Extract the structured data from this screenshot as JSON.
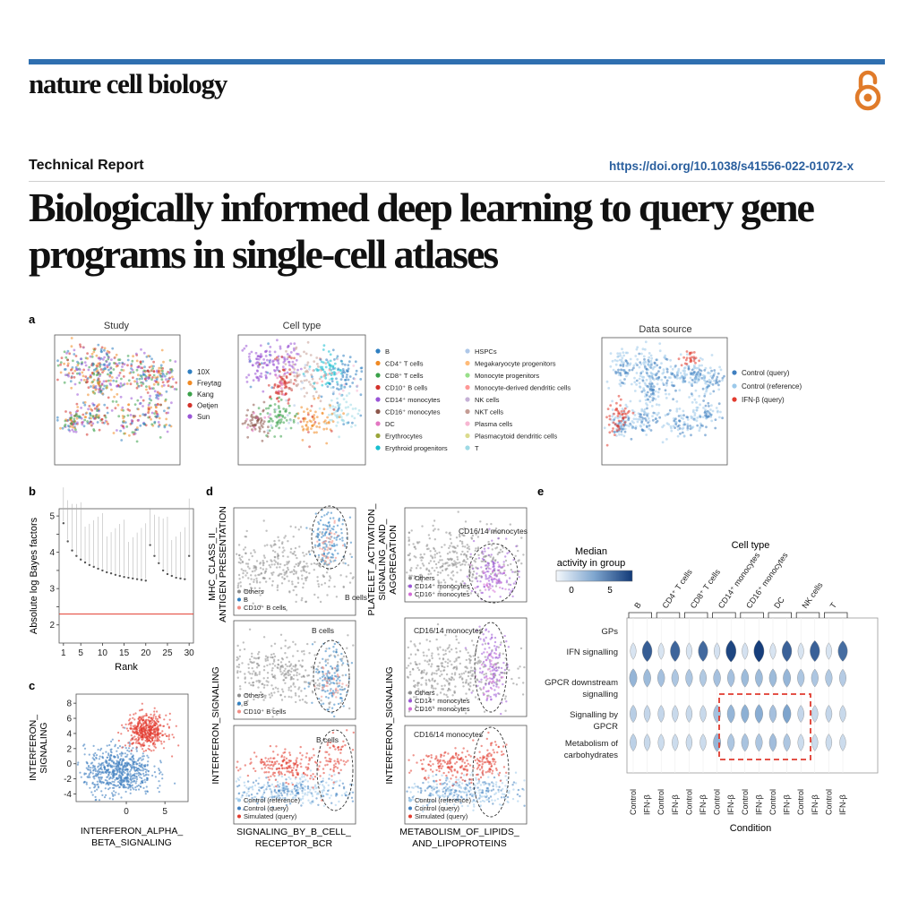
{
  "header": {
    "journal_name": "nature cell biology",
    "open_access_icon": "open-access-lock-icon",
    "article_type": "Technical Report",
    "doi": "https://doi.org/10.1038/s41556-022-01072-x",
    "title": "Biologically informed deep learning to query gene programs in single-cell atlases"
  },
  "colors": {
    "accent_bar": "#2f6fb0",
    "doi_link": "#2a5f9e",
    "open_access": "#e07b2a",
    "ifn_red": "#e23b2e",
    "control_blue": "#3f7fc0",
    "reference_lightblue": "#9cc9ea"
  },
  "figure": {
    "panel_letters": [
      "a",
      "b",
      "c",
      "d",
      "e"
    ],
    "a": {
      "study_title": "Study",
      "study_legend": [
        {
          "label": "10X",
          "color": "#2f7fc1"
        },
        {
          "label": "Freytag",
          "color": "#f08a24"
        },
        {
          "label": "Kang",
          "color": "#3aa14a"
        },
        {
          "label": "Oetjen",
          "color": "#d3322b"
        },
        {
          "label": "Sun",
          "color": "#9a55d6"
        }
      ],
      "celltype_title": "Cell type",
      "celltype_legend_col1": [
        {
          "label": "B",
          "color": "#2f7fc1"
        },
        {
          "label": "CD4⁺ T cells",
          "color": "#f08a24"
        },
        {
          "label": "CD8⁺ T cells",
          "color": "#3aa14a"
        },
        {
          "label": "CD10⁺ B cells",
          "color": "#d3322b"
        },
        {
          "label": "CD14⁺ monocytes",
          "color": "#9a55d6"
        },
        {
          "label": "CD16⁺ monocytes",
          "color": "#8c564b"
        },
        {
          "label": "DC",
          "color": "#e377c2"
        },
        {
          "label": "Erythrocytes",
          "color": "#9aa53a"
        },
        {
          "label": "Erythroid progenitors",
          "color": "#17becf"
        }
      ],
      "celltype_legend_col2": [
        {
          "label": "HSPCs",
          "color": "#aec7e8"
        },
        {
          "label": "Megakaryocyte progenitors",
          "color": "#ffbb78"
        },
        {
          "label": "Monocyte progenitors",
          "color": "#98df8a"
        },
        {
          "label": "Monocyte-derived dendritic cells",
          "color": "#ff9896"
        },
        {
          "label": "NK cells",
          "color": "#c5b0d5"
        },
        {
          "label": "NKT cells",
          "color": "#c49c94"
        },
        {
          "label": "Plasma cells",
          "color": "#f7b6d2"
        },
        {
          "label": "Plasmacytoid dendritic cells",
          "color": "#dbdb8d"
        },
        {
          "label": "T",
          "color": "#9edae5"
        }
      ],
      "source_title": "Data source",
      "source_legend": [
        {
          "label": "Control (query)",
          "color": "#3f7fc0"
        },
        {
          "label": "Control (reference)",
          "color": "#9cc9ea"
        },
        {
          "label": "IFN-β (query)",
          "color": "#e23b2e"
        }
      ]
    },
    "b": {
      "ylabel": "Absolute log Bayes factors",
      "xlabel": "Rank"
    },
    "c": {
      "ylabel_line1": "INTERFERON_",
      "ylabel_line2": "SIGNALING",
      "xlabel_line1": "INTERFERON_ALPHA_",
      "xlabel_line2": "BETA_SIGNALING"
    },
    "d": {
      "left_ylabels": [
        "MHC_CLASS_II_",
        "ANTIGEN PRESENTATION"
      ],
      "right_ylabels": [
        "PLATELET_ACTIVATION_",
        "SIGNALING_AND_",
        "AGGREGATION"
      ],
      "shared_ylabel": "INTERFERON_SIGNALING",
      "left_xlabels": [
        "SIGNALING_BY_B_CELL_",
        "RECEPTOR_BCR"
      ],
      "right_xlabels": [
        "METABOLISM_OF_LIPIDS_",
        "AND_LIPOPROTEINS"
      ],
      "annot_bcells": "B cells",
      "annot_mono": "CD16/14 monocytes",
      "legend_bcell": [
        "Others",
        "B",
        "CD10⁺ B cells"
      ],
      "legend_mono": [
        "Others",
        "CD14⁺ monocytes",
        "CD16⁺ monocytes"
      ],
      "legend_sim_left": [
        "Control (reference)",
        "Control (query)",
        "Simulated (query)"
      ],
      "legend_sim_right": [
        "Control (reference)",
        "Control (query)",
        "Simulated (query)"
      ]
    },
    "e": {
      "colorbar_title_line1": "Median",
      "colorbar_title_line2": "activity in group",
      "colorbar_ticks": [
        "0",
        "5"
      ],
      "celltype_title": "Cell type",
      "celltypes": [
        "B",
        "CD4⁺ T cells",
        "CD8⁺ T cells",
        "CD14⁺ monocytes",
        "CD16⁺ monocytes",
        "DC",
        "NK cells",
        "T"
      ],
      "rows": [
        "GPs",
        "IFN signalling",
        "GPCR downstream",
        "signalling",
        "Signalling by",
        "GPCR",
        "Metabolism of",
        "carbohydrates"
      ],
      "conditions": [
        "Control",
        "IFN-β"
      ],
      "xlabel": "Condition"
    }
  },
  "chart_data": [
    {
      "type": "scatter",
      "title": "",
      "xlabel": "Rank",
      "ylabel": "Absolute log Bayes factors",
      "x_ticks": [
        1,
        5,
        10,
        15,
        20,
        25,
        30
      ],
      "y_ticks": [
        2,
        2.5,
        3,
        3.5,
        4,
        4.5,
        5
      ],
      "xlim": [
        0,
        31
      ],
      "ylim": [
        1.5,
        5.2
      ],
      "threshold": 2.3,
      "x": [
        1,
        2,
        3,
        4,
        5,
        6,
        7,
        8,
        9,
        10,
        11,
        12,
        13,
        14,
        15,
        16,
        17,
        18,
        19,
        20,
        21,
        22,
        23,
        24,
        25,
        26,
        27,
        28,
        29,
        30
      ],
      "values": [
        4.8,
        4.3,
        4.05,
        3.9,
        3.8,
        3.72,
        3.65,
        3.6,
        3.55,
        3.5,
        3.45,
        3.42,
        3.38,
        3.35,
        3.32,
        3.3,
        3.28,
        3.26,
        3.24,
        3.22,
        4.2,
        3.9,
        3.7,
        3.5,
        3.4,
        3.35,
        3.3,
        3.28,
        3.26,
        3.9
      ]
    },
    {
      "type": "scatter",
      "xlabel": "INTERFERON_ALPHA_BETA_SIGNALING",
      "ylabel": "INTERFERON_SIGNALING",
      "x_ticks": [
        0,
        5
      ],
      "y_ticks": [
        -4,
        -2,
        0,
        2,
        4,
        6,
        8
      ],
      "xlim": [
        -6.5,
        8
      ],
      "ylim": [
        -5,
        9.2
      ],
      "series": [
        {
          "name": "Control",
          "color": "#3f7fc0",
          "center": [
            -1,
            -1
          ],
          "spread": [
            2.2,
            1.6
          ]
        },
        {
          "name": "IFN-β",
          "color": "#e23b2e",
          "center": [
            2.6,
            4.3
          ],
          "spread": [
            1.3,
            1.1
          ]
        }
      ]
    },
    {
      "type": "heatmap",
      "title": "Median activity in group",
      "celltypes": [
        "B",
        "CD4⁺ T cells",
        "CD8⁺ T cells",
        "CD14⁺ monocytes",
        "CD16⁺ monocytes",
        "DC",
        "NK cells",
        "T"
      ],
      "conditions": [
        "Control",
        "IFN-β"
      ],
      "gene_programs": [
        "IFN signalling",
        "GPCR downstream signalling",
        "Signalling by GPCR",
        "Metabolism of carbohydrates"
      ],
      "colorbar_range": [
        0,
        5
      ],
      "values": [
        [
          0.5,
          4.6,
          0.5,
          4.4,
          0.5,
          4.3,
          0.6,
          5.2,
          0.6,
          5.4,
          0.5,
          4.5,
          0.5,
          4.5,
          0.5,
          4.2
        ],
        [
          2.2,
          2.0,
          1.8,
          1.6,
          1.6,
          1.5,
          1.8,
          1.8,
          2.0,
          2.0,
          2.0,
          2.2,
          1.6,
          1.6,
          1.5,
          1.4
        ],
        [
          1.3,
          1.0,
          1.0,
          0.9,
          0.9,
          0.9,
          1.8,
          2.2,
          2.4,
          2.5,
          1.8,
          2.8,
          1.0,
          0.9,
          1.0,
          0.9
        ],
        [
          1.2,
          0.9,
          0.8,
          0.8,
          0.8,
          0.8,
          2.2,
          1.6,
          1.7,
          1.6,
          1.9,
          1.6,
          0.8,
          0.8,
          0.8,
          0.8
        ]
      ]
    }
  ]
}
